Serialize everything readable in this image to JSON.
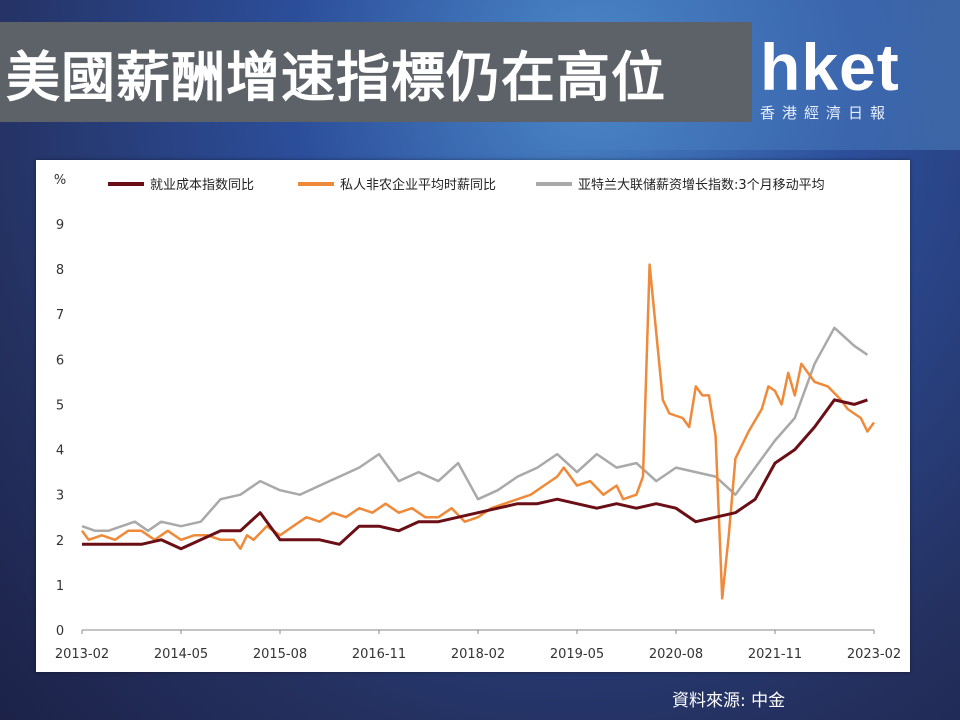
{
  "header": {
    "title": "美國薪酬增速指標仍在高位",
    "logo_text": "hket",
    "logo_subtitle": "香港經濟日報"
  },
  "footer": {
    "source": "資料來源: 中金"
  },
  "chart_data": {
    "type": "line",
    "ylabel": "%",
    "ylim": [
      0,
      9
    ],
    "yticks": [
      "0",
      "1",
      "2",
      "3",
      "4",
      "5",
      "6",
      "7",
      "8",
      "9"
    ],
    "xlim": [
      "2013-02",
      "2023-02"
    ],
    "x_ticks": [
      "2013-02",
      "2014-05",
      "2015-08",
      "2016-11",
      "2018-02",
      "2019-05",
      "2020-08",
      "2021-11",
      "2023-02"
    ],
    "grid": false,
    "legend_position": "top",
    "series": [
      {
        "name": "就业成本指数同比",
        "color": "#6b0f16",
        "points": [
          [
            "2013-02",
            1.9
          ],
          [
            "2013-05",
            1.9
          ],
          [
            "2013-08",
            1.9
          ],
          [
            "2013-11",
            1.9
          ],
          [
            "2014-02",
            2.0
          ],
          [
            "2014-05",
            1.8
          ],
          [
            "2014-08",
            2.0
          ],
          [
            "2014-11",
            2.2
          ],
          [
            "2015-02",
            2.2
          ],
          [
            "2015-05",
            2.6
          ],
          [
            "2015-08",
            2.0
          ],
          [
            "2015-11",
            2.0
          ],
          [
            "2016-02",
            2.0
          ],
          [
            "2016-05",
            1.9
          ],
          [
            "2016-08",
            2.3
          ],
          [
            "2016-11",
            2.3
          ],
          [
            "2017-02",
            2.2
          ],
          [
            "2017-05",
            2.4
          ],
          [
            "2017-08",
            2.4
          ],
          [
            "2017-11",
            2.5
          ],
          [
            "2018-02",
            2.6
          ],
          [
            "2018-05",
            2.7
          ],
          [
            "2018-08",
            2.8
          ],
          [
            "2018-11",
            2.8
          ],
          [
            "2019-02",
            2.9
          ],
          [
            "2019-05",
            2.8
          ],
          [
            "2019-08",
            2.7
          ],
          [
            "2019-11",
            2.8
          ],
          [
            "2020-02",
            2.7
          ],
          [
            "2020-05",
            2.8
          ],
          [
            "2020-08",
            2.7
          ],
          [
            "2020-11",
            2.4
          ],
          [
            "2021-02",
            2.5
          ],
          [
            "2021-05",
            2.6
          ],
          [
            "2021-08",
            2.9
          ],
          [
            "2021-11",
            3.7
          ],
          [
            "2022-02",
            4.0
          ],
          [
            "2022-05",
            4.5
          ],
          [
            "2022-08",
            5.1
          ],
          [
            "2022-11",
            5.0
          ],
          [
            "2023-01",
            5.1
          ]
        ]
      },
      {
        "name": "私人非农企业平均时薪同比",
        "color": "#ee8a3a",
        "points": [
          [
            "2013-02",
            2.2
          ],
          [
            "2013-03",
            2.0
          ],
          [
            "2013-05",
            2.1
          ],
          [
            "2013-07",
            2.0
          ],
          [
            "2013-09",
            2.2
          ],
          [
            "2013-11",
            2.2
          ],
          [
            "2014-01",
            2.0
          ],
          [
            "2014-03",
            2.2
          ],
          [
            "2014-05",
            2.0
          ],
          [
            "2014-07",
            2.1
          ],
          [
            "2014-09",
            2.1
          ],
          [
            "2014-11",
            2.0
          ],
          [
            "2015-01",
            2.0
          ],
          [
            "2015-02",
            1.8
          ],
          [
            "2015-03",
            2.1
          ],
          [
            "2015-04",
            2.0
          ],
          [
            "2015-06",
            2.3
          ],
          [
            "2015-08",
            2.1
          ],
          [
            "2015-10",
            2.3
          ],
          [
            "2015-12",
            2.5
          ],
          [
            "2016-02",
            2.4
          ],
          [
            "2016-04",
            2.6
          ],
          [
            "2016-06",
            2.5
          ],
          [
            "2016-08",
            2.7
          ],
          [
            "2016-10",
            2.6
          ],
          [
            "2016-12",
            2.8
          ],
          [
            "2017-02",
            2.6
          ],
          [
            "2017-04",
            2.7
          ],
          [
            "2017-06",
            2.5
          ],
          [
            "2017-08",
            2.5
          ],
          [
            "2017-10",
            2.7
          ],
          [
            "2017-12",
            2.4
          ],
          [
            "2018-02",
            2.5
          ],
          [
            "2018-04",
            2.7
          ],
          [
            "2018-06",
            2.8
          ],
          [
            "2018-08",
            2.9
          ],
          [
            "2018-10",
            3.0
          ],
          [
            "2018-12",
            3.2
          ],
          [
            "2019-02",
            3.4
          ],
          [
            "2019-03",
            3.6
          ],
          [
            "2019-05",
            3.2
          ],
          [
            "2019-07",
            3.3
          ],
          [
            "2019-09",
            3.0
          ],
          [
            "2019-11",
            3.2
          ],
          [
            "2019-12",
            2.9
          ],
          [
            "2020-02",
            3.0
          ],
          [
            "2020-03",
            3.4
          ],
          [
            "2020-04",
            8.1
          ],
          [
            "2020-05",
            6.6
          ],
          [
            "2020-06",
            5.1
          ],
          [
            "2020-07",
            4.8
          ],
          [
            "2020-09",
            4.7
          ],
          [
            "2020-10",
            4.5
          ],
          [
            "2020-11",
            5.4
          ],
          [
            "2020-12",
            5.2
          ],
          [
            "2021-01",
            5.2
          ],
          [
            "2021-02",
            4.3
          ],
          [
            "2021-03",
            0.7
          ],
          [
            "2021-04",
            2.1
          ],
          [
            "2021-05",
            3.8
          ],
          [
            "2021-07",
            4.4
          ],
          [
            "2021-09",
            4.9
          ],
          [
            "2021-10",
            5.4
          ],
          [
            "2021-11",
            5.3
          ],
          [
            "2021-12",
            5.0
          ],
          [
            "2022-01",
            5.7
          ],
          [
            "2022-02",
            5.2
          ],
          [
            "2022-03",
            5.9
          ],
          [
            "2022-05",
            5.5
          ],
          [
            "2022-07",
            5.4
          ],
          [
            "2022-09",
            5.1
          ],
          [
            "2022-10",
            4.9
          ],
          [
            "2022-12",
            4.7
          ],
          [
            "2023-01",
            4.4
          ],
          [
            "2023-02",
            4.6
          ]
        ]
      },
      {
        "name": "亚特兰大联储薪资增长指数:3个月移动平均",
        "color": "#a9a9a9",
        "points": [
          [
            "2013-02",
            2.3
          ],
          [
            "2013-04",
            2.2
          ],
          [
            "2013-06",
            2.2
          ],
          [
            "2013-08",
            2.3
          ],
          [
            "2013-10",
            2.4
          ],
          [
            "2013-12",
            2.2
          ],
          [
            "2014-02",
            2.4
          ],
          [
            "2014-05",
            2.3
          ],
          [
            "2014-08",
            2.4
          ],
          [
            "2014-11",
            2.9
          ],
          [
            "2015-02",
            3.0
          ],
          [
            "2015-05",
            3.3
          ],
          [
            "2015-08",
            3.1
          ],
          [
            "2015-11",
            3.0
          ],
          [
            "2016-02",
            3.2
          ],
          [
            "2016-05",
            3.4
          ],
          [
            "2016-08",
            3.6
          ],
          [
            "2016-11",
            3.9
          ],
          [
            "2017-02",
            3.3
          ],
          [
            "2017-05",
            3.5
          ],
          [
            "2017-08",
            3.3
          ],
          [
            "2017-11",
            3.7
          ],
          [
            "2018-02",
            2.9
          ],
          [
            "2018-05",
            3.1
          ],
          [
            "2018-08",
            3.4
          ],
          [
            "2018-11",
            3.6
          ],
          [
            "2019-02",
            3.9
          ],
          [
            "2019-05",
            3.5
          ],
          [
            "2019-08",
            3.9
          ],
          [
            "2019-11",
            3.6
          ],
          [
            "2020-02",
            3.7
          ],
          [
            "2020-05",
            3.3
          ],
          [
            "2020-08",
            3.6
          ],
          [
            "2020-11",
            3.5
          ],
          [
            "2021-02",
            3.4
          ],
          [
            "2021-05",
            3.0
          ],
          [
            "2021-08",
            3.6
          ],
          [
            "2021-11",
            4.2
          ],
          [
            "2022-02",
            4.7
          ],
          [
            "2022-05",
            5.9
          ],
          [
            "2022-08",
            6.7
          ],
          [
            "2022-11",
            6.3
          ],
          [
            "2023-01",
            6.1
          ]
        ]
      }
    ]
  }
}
